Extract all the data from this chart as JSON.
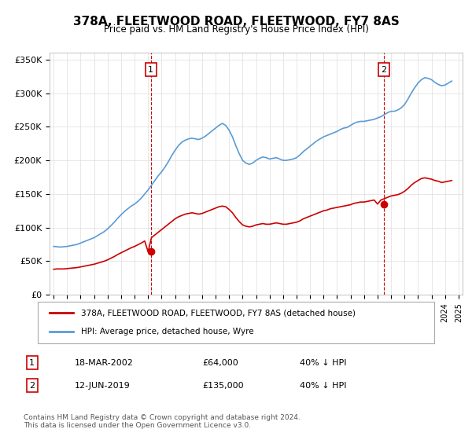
{
  "title": "378A, FLEETWOOD ROAD, FLEETWOOD, FY7 8AS",
  "subtitle": "Price paid vs. HM Land Registry's House Price Index (HPI)",
  "legend_entry1": "378A, FLEETWOOD ROAD, FLEETWOOD, FY7 8AS (detached house)",
  "legend_entry2": "HPI: Average price, detached house, Wyre",
  "annotation1_label": "1",
  "annotation1_date": "18-MAR-2002",
  "annotation1_price": "£64,000",
  "annotation1_hpi": "40% ↓ HPI",
  "annotation2_label": "2",
  "annotation2_date": "12-JUN-2019",
  "annotation2_price": "£135,000",
  "annotation2_hpi": "40% ↓ HPI",
  "footnote": "Contains HM Land Registry data © Crown copyright and database right 2024.\nThis data is licensed under the Open Government Licence v3.0.",
  "red_color": "#cc0000",
  "blue_color": "#5b9bd5",
  "marker_color": "#cc0000",
  "vline_color": "#cc0000",
  "ylim_min": 0,
  "ylim_max": 360000,
  "yticks": [
    0,
    50000,
    100000,
    150000,
    200000,
    250000,
    300000,
    350000
  ],
  "ytick_labels": [
    "£0",
    "£50K",
    "£100K",
    "£150K",
    "£200K",
    "£250K",
    "£300K",
    "£350K"
  ],
  "x_start_year": 1995,
  "x_end_year": 2025,
  "xtick_years": [
    1995,
    1996,
    1997,
    1998,
    1999,
    2000,
    2001,
    2002,
    2003,
    2004,
    2005,
    2006,
    2007,
    2008,
    2009,
    2010,
    2011,
    2012,
    2013,
    2014,
    2015,
    2016,
    2017,
    2018,
    2019,
    2020,
    2021,
    2022,
    2023,
    2024,
    2025
  ],
  "hpi_x": [
    1995.0,
    1995.25,
    1995.5,
    1995.75,
    1996.0,
    1996.25,
    1996.5,
    1996.75,
    1997.0,
    1997.25,
    1997.5,
    1997.75,
    1998.0,
    1998.25,
    1998.5,
    1998.75,
    1999.0,
    1999.25,
    1999.5,
    1999.75,
    2000.0,
    2000.25,
    2000.5,
    2000.75,
    2001.0,
    2001.25,
    2001.5,
    2001.75,
    2002.0,
    2002.25,
    2002.5,
    2002.75,
    2003.0,
    2003.25,
    2003.5,
    2003.75,
    2004.0,
    2004.25,
    2004.5,
    2004.75,
    2005.0,
    2005.25,
    2005.5,
    2005.75,
    2006.0,
    2006.25,
    2006.5,
    2006.75,
    2007.0,
    2007.25,
    2007.5,
    2007.75,
    2008.0,
    2008.25,
    2008.5,
    2008.75,
    2009.0,
    2009.25,
    2009.5,
    2009.75,
    2010.0,
    2010.25,
    2010.5,
    2010.75,
    2011.0,
    2011.25,
    2011.5,
    2011.75,
    2012.0,
    2012.25,
    2012.5,
    2012.75,
    2013.0,
    2013.25,
    2013.5,
    2013.75,
    2014.0,
    2014.25,
    2014.5,
    2014.75,
    2015.0,
    2015.25,
    2015.5,
    2015.75,
    2016.0,
    2016.25,
    2016.5,
    2016.75,
    2017.0,
    2017.25,
    2017.5,
    2017.75,
    2018.0,
    2018.25,
    2018.5,
    2018.75,
    2019.0,
    2019.25,
    2019.5,
    2019.75,
    2020.0,
    2020.25,
    2020.5,
    2020.75,
    2021.0,
    2021.25,
    2021.5,
    2021.75,
    2022.0,
    2022.25,
    2022.5,
    2022.75,
    2023.0,
    2023.25,
    2023.5,
    2023.75,
    2024.0,
    2024.25,
    2024.5
  ],
  "hpi_y": [
    72000,
    71500,
    71000,
    71500,
    72000,
    73000,
    74000,
    75000,
    77000,
    79000,
    81000,
    83000,
    85000,
    88000,
    91000,
    94000,
    98000,
    103000,
    108000,
    114000,
    119000,
    124000,
    128000,
    132000,
    135000,
    139000,
    144000,
    150000,
    156000,
    163000,
    170000,
    177000,
    183000,
    190000,
    198000,
    207000,
    215000,
    222000,
    227000,
    230000,
    232000,
    233000,
    232000,
    231000,
    233000,
    236000,
    240000,
    244000,
    248000,
    252000,
    255000,
    252000,
    245000,
    235000,
    222000,
    210000,
    200000,
    196000,
    194000,
    196000,
    200000,
    203000,
    205000,
    204000,
    202000,
    203000,
    204000,
    202000,
    200000,
    200000,
    201000,
    202000,
    204000,
    208000,
    213000,
    217000,
    221000,
    225000,
    229000,
    232000,
    235000,
    237000,
    239000,
    241000,
    243000,
    246000,
    248000,
    249000,
    252000,
    255000,
    257000,
    258000,
    258000,
    259000,
    260000,
    261000,
    263000,
    265000,
    268000,
    271000,
    273000,
    273000,
    275000,
    278000,
    283000,
    291000,
    300000,
    308000,
    315000,
    320000,
    323000,
    322000,
    320000,
    316000,
    313000,
    311000,
    312000,
    315000,
    318000
  ],
  "red_x": [
    1995.0,
    1995.25,
    1995.5,
    1995.75,
    1996.0,
    1996.25,
    1996.5,
    1996.75,
    1997.0,
    1997.25,
    1997.5,
    1997.75,
    1998.0,
    1998.25,
    1998.5,
    1998.75,
    1999.0,
    1999.25,
    1999.5,
    1999.75,
    2000.0,
    2000.25,
    2000.5,
    2000.75,
    2001.0,
    2001.25,
    2001.5,
    2001.75,
    2002.0,
    2002.25,
    2002.5,
    2002.75,
    2003.0,
    2003.25,
    2003.5,
    2003.75,
    2004.0,
    2004.25,
    2004.5,
    2004.75,
    2005.0,
    2005.25,
    2005.5,
    2005.75,
    2006.0,
    2006.25,
    2006.5,
    2006.75,
    2007.0,
    2007.25,
    2007.5,
    2007.75,
    2008.0,
    2008.25,
    2008.5,
    2008.75,
    2009.0,
    2009.25,
    2009.5,
    2009.75,
    2010.0,
    2010.25,
    2010.5,
    2010.75,
    2011.0,
    2011.25,
    2011.5,
    2011.75,
    2012.0,
    2012.25,
    2012.5,
    2012.75,
    2013.0,
    2013.25,
    2013.5,
    2013.75,
    2014.0,
    2014.25,
    2014.5,
    2014.75,
    2015.0,
    2015.25,
    2015.5,
    2015.75,
    2016.0,
    2016.25,
    2016.5,
    2016.75,
    2017.0,
    2017.25,
    2017.5,
    2017.75,
    2018.0,
    2018.25,
    2018.5,
    2018.75,
    2019.0,
    2019.25,
    2019.5,
    2019.75,
    2020.0,
    2020.25,
    2020.5,
    2020.75,
    2021.0,
    2021.25,
    2021.5,
    2021.75,
    2022.0,
    2022.25,
    2022.5,
    2022.75,
    2023.0,
    2023.25,
    2023.5,
    2023.75,
    2024.0,
    2024.25,
    2024.5
  ],
  "red_y": [
    38000,
    38500,
    38500,
    38500,
    39000,
    39500,
    40000,
    40500,
    41500,
    42500,
    43500,
    44500,
    45500,
    47000,
    48500,
    50000,
    52000,
    54500,
    57000,
    60000,
    62500,
    65000,
    67500,
    70000,
    72000,
    74500,
    77000,
    80000,
    64000,
    85000,
    89000,
    93000,
    97000,
    101000,
    105000,
    109000,
    113000,
    116000,
    118000,
    120000,
    121000,
    122000,
    121000,
    120000,
    121000,
    123000,
    125000,
    127000,
    129000,
    131000,
    132000,
    131000,
    127000,
    122000,
    115000,
    109000,
    104000,
    102000,
    101000,
    102000,
    104000,
    105000,
    106000,
    105000,
    105000,
    106000,
    107000,
    106000,
    105000,
    105000,
    106000,
    107000,
    108000,
    110000,
    113000,
    115000,
    117000,
    119000,
    121000,
    123000,
    125000,
    126000,
    128000,
    129000,
    130000,
    131000,
    132000,
    133000,
    134000,
    136000,
    137000,
    138000,
    138000,
    139000,
    140000,
    141000,
    135000,
    141000,
    143000,
    145000,
    147000,
    148000,
    149000,
    151000,
    154000,
    158000,
    163000,
    167000,
    170000,
    173000,
    174000,
    173000,
    172000,
    170000,
    169000,
    167000,
    168000,
    169000,
    170000
  ],
  "sale1_x": 2002.2,
  "sale1_y": 64000,
  "sale2_x": 2019.45,
  "sale2_y": 135000,
  "vline1_x": 2002.2,
  "vline2_x": 2019.45
}
